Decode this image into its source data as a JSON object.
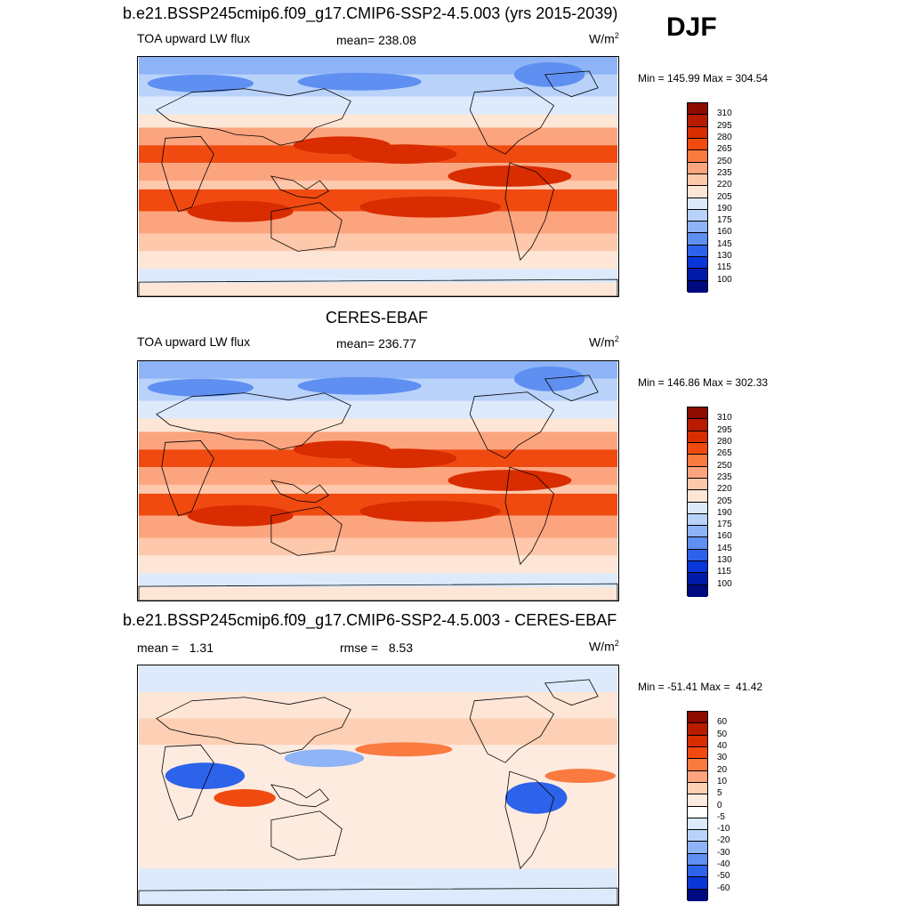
{
  "season": "DJF",
  "panels": [
    {
      "title": "b.e21.BSSP245cmip6.f09_g17.CMIP6-SSP2-4.5.003 (yrs 2015-2039)",
      "left_label": "TOA upward LW flux",
      "center_label": "mean= 238.08",
      "units": "W/m",
      "units_exp": "2",
      "minmax": "Min = 145.99 Max = 304.54",
      "kind": "abs",
      "colorbar": {
        "labels": [
          "310",
          "295",
          "280",
          "265",
          "250",
          "235",
          "220",
          "205",
          "190",
          "175",
          "160",
          "145",
          "130",
          "115",
          "100"
        ],
        "colors": [
          "#8c0a00",
          "#b81b00",
          "#d92c00",
          "#f04a10",
          "#fa7a40",
          "#fca47e",
          "#fdc8ab",
          "#fde6d6",
          "#dceafc",
          "#b8d2fa",
          "#8eb4f7",
          "#5f8ff1",
          "#2d62ea",
          "#0a36d8",
          "#001aa8",
          "#000a80"
        ]
      }
    },
    {
      "title": "CERES-EBAF",
      "left_label": "TOA upward LW flux",
      "center_label": "mean= 236.77",
      "units": "W/m",
      "units_exp": "2",
      "minmax": "Min = 146.86 Max = 302.33",
      "kind": "abs",
      "colorbar": {
        "labels": [
          "310",
          "295",
          "280",
          "265",
          "250",
          "235",
          "220",
          "205",
          "190",
          "175",
          "160",
          "145",
          "130",
          "115",
          "100"
        ],
        "colors": [
          "#8c0a00",
          "#b81b00",
          "#d92c00",
          "#f04a10",
          "#fa7a40",
          "#fca47e",
          "#fdc8ab",
          "#fde6d6",
          "#dceafc",
          "#b8d2fa",
          "#8eb4f7",
          "#5f8ff1",
          "#2d62ea",
          "#0a36d8",
          "#001aa8",
          "#000a80"
        ]
      }
    },
    {
      "title": "b.e21.BSSP245cmip6.f09_g17.CMIP6-SSP2-4.5.003 - CERES-EBAF",
      "left_label": "mean =   1.31",
      "center_label": "rmse =   8.53",
      "units": "W/m",
      "units_exp": "2",
      "minmax": "Min = -51.41 Max =  41.42",
      "kind": "diff",
      "colorbar": {
        "labels": [
          "60",
          "50",
          "40",
          "30",
          "20",
          "10",
          "5",
          "0",
          "-5",
          "-10",
          "-20",
          "-30",
          "-40",
          "-50",
          "-60"
        ],
        "colors": [
          "#8c0a00",
          "#b81b00",
          "#d92c00",
          "#f04a10",
          "#fa7a40",
          "#fca47e",
          "#fdcfb4",
          "#fdebe0",
          "#ffffff",
          "#dceafc",
          "#b8d2fa",
          "#8eb4f7",
          "#5f8ff1",
          "#2d62ea",
          "#0a36d8",
          "#000a80"
        ]
      }
    }
  ]
}
